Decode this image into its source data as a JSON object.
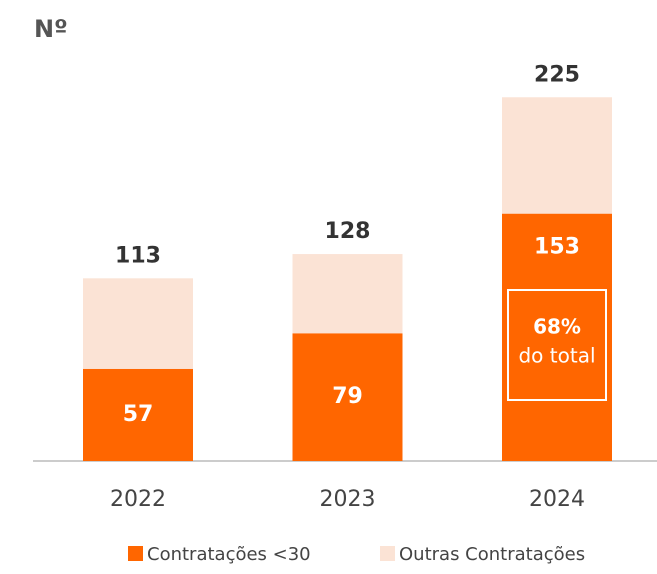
{
  "chart_data": {
    "type": "stacked_bar",
    "y_label": "Nº",
    "categories": [
      "2022",
      "2023",
      "2024"
    ],
    "series": [
      {
        "name": "Contratações <30",
        "color": "#ff6600",
        "values": [
          57,
          79,
          153
        ]
      },
      {
        "name": "Outras Contratações",
        "color": "#fbe3d5",
        "values": [
          56,
          49,
          72
        ]
      }
    ],
    "totals": [
      113,
      128,
      225
    ],
    "annotation": [
      "68%",
      "do total"
    ],
    "ylim": [
      0,
      240
    ]
  }
}
